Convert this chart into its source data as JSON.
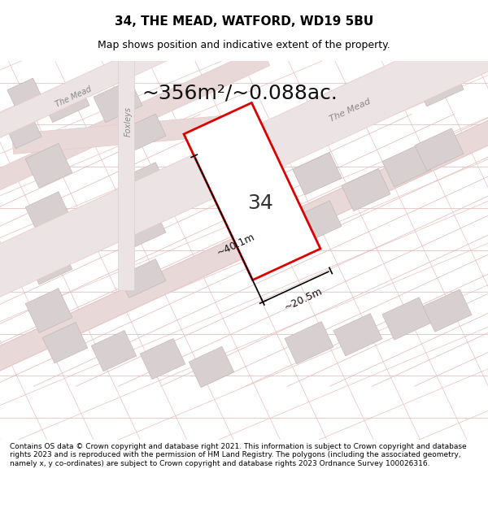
{
  "title": "34, THE MEAD, WATFORD, WD19 5BU",
  "subtitle": "Map shows position and indicative extent of the property.",
  "area_label": "~356m²/~0.088ac.",
  "house_number": "34",
  "dim_width": "~20.5m",
  "dim_height": "~40.1m",
  "street_label1": "The Mead",
  "street_label2": "The Mead",
  "street_label3": "Foxleys",
  "footer": "Contains OS data © Crown copyright and database right 2021. This information is subject to Crown copyright and database rights 2023 and is reproduced with the permission of HM Land Registry. The polygons (including the associated geometry, namely x, y co-ordinates) are subject to Crown copyright and database rights 2023 Ordnance Survey 100026316.",
  "bg_color": "#f9f5f5",
  "map_bg": "#f7f0f0",
  "plot_color": "#ff0000",
  "plot_fill": "#ffffff",
  "road_color": "#e8c8c8",
  "building_color": "#d8d0d0",
  "grid_line_color": "#e0d0d0",
  "title_fontsize": 11,
  "subtitle_fontsize": 9,
  "area_fontsize": 18,
  "footer_fontsize": 6.5
}
